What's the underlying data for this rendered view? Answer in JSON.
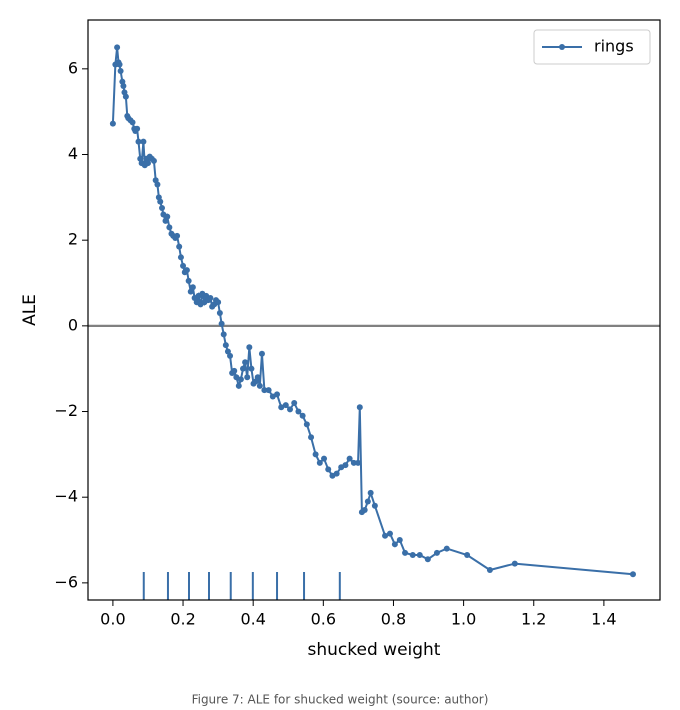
{
  "chart_data": {
    "type": "line",
    "xlabel": "shucked weight",
    "ylabel": "ALE",
    "x": [
      0,
      0.007,
      0.012,
      0.016,
      0.019,
      0.022,
      0.027,
      0.03,
      0.033,
      0.037,
      0.041,
      0.044,
      0.05,
      0.056,
      0.061,
      0.064,
      0.069,
      0.073,
      0.078,
      0.082,
      0.087,
      0.091,
      0.095,
      0.1,
      0.105,
      0.111,
      0.117,
      0.122,
      0.127,
      0.131,
      0.135,
      0.14,
      0.144,
      0.15,
      0.155,
      0.161,
      0.167,
      0.172,
      0.178,
      0.183,
      0.189,
      0.194,
      0.2,
      0.205,
      0.211,
      0.216,
      0.222,
      0.228,
      0.233,
      0.239,
      0.244,
      0.25,
      0.255,
      0.261,
      0.266,
      0.272,
      0.278,
      0.283,
      0.289,
      0.294,
      0.3,
      0.305,
      0.31,
      0.316,
      0.322,
      0.328,
      0.334,
      0.34,
      0.346,
      0.352,
      0.359,
      0.365,
      0.371,
      0.377,
      0.383,
      0.389,
      0.395,
      0.401,
      0.407,
      0.413,
      0.419,
      0.425,
      0.432,
      0.444,
      0.456,
      0.468,
      0.48,
      0.493,
      0.505,
      0.517,
      0.529,
      0.541,
      0.553,
      0.565,
      0.578,
      0.59,
      0.602,
      0.614,
      0.626,
      0.638,
      0.651,
      0.663,
      0.675,
      0.687,
      0.699,
      0.704,
      0.71,
      0.718,
      0.727,
      0.735,
      0.747,
      0.776,
      0.79,
      0.804,
      0.818,
      0.833,
      0.855,
      0.875,
      0.898,
      0.924,
      0.952,
      1.01,
      1.075,
      1.146,
      1.483
    ],
    "series": [
      {
        "name": "rings",
        "color": "#3a6fa8",
        "values": [
          4.72,
          6.1,
          6.5,
          6.15,
          6.1,
          5.95,
          5.7,
          5.6,
          5.45,
          5.35,
          4.9,
          4.85,
          4.8,
          4.75,
          4.6,
          4.55,
          4.6,
          4.3,
          3.9,
          3.8,
          4.3,
          3.75,
          3.9,
          3.8,
          3.95,
          3.9,
          3.85,
          3.4,
          3.3,
          3.0,
          2.9,
          2.75,
          2.6,
          2.45,
          2.55,
          2.3,
          2.15,
          2.1,
          2.05,
          2.1,
          1.85,
          1.6,
          1.4,
          1.25,
          1.3,
          1.05,
          0.8,
          0.9,
          0.65,
          0.55,
          0.7,
          0.5,
          0.75,
          0.55,
          0.7,
          0.6,
          0.65,
          0.45,
          0.5,
          0.6,
          0.55,
          0.3,
          0.05,
          -0.2,
          -0.45,
          -0.6,
          -0.7,
          -1.1,
          -1.05,
          -1.2,
          -1.4,
          -1.25,
          -1.0,
          -0.85,
          -1.2,
          -0.5,
          -1.0,
          -1.35,
          -1.3,
          -1.2,
          -1.4,
          -0.65,
          -1.5,
          -1.5,
          -1.65,
          -1.6,
          -1.9,
          -1.85,
          -1.95,
          -1.8,
          -2.0,
          -2.1,
          -2.3,
          -2.6,
          -3.0,
          -3.2,
          -3.1,
          -3.35,
          -3.5,
          -3.45,
          -3.3,
          -3.25,
          -3.1,
          -3.2,
          -3.2,
          -1.9,
          -4.35,
          -4.3,
          -4.1,
          -3.9,
          -4.2,
          -4.9,
          -4.85,
          -5.1,
          -5.0,
          -5.3,
          -5.35,
          -5.35,
          -5.45,
          -5.3,
          -5.2,
          -5.35,
          -5.7,
          -5.55,
          -5.8
        ]
      }
    ],
    "rug": [
      0.088,
      0.157,
      0.217,
      0.274,
      0.336,
      0.399,
      0.468,
      0.545,
      0.647
    ],
    "xlim": [
      -0.071,
      1.56
    ],
    "ylim": [
      -6.4,
      7.14
    ],
    "xticks": [
      {
        "value": 0,
        "label": "0.0"
      },
      0.2,
      0.4,
      0.6,
      0.8,
      {
        "value": 1,
        "label": "1.0"
      },
      1.2,
      1.4
    ],
    "yticks": [
      {
        "value": -6,
        "label": "−6"
      },
      {
        "value": -4,
        "label": "−4"
      },
      {
        "value": -2,
        "label": "−2"
      },
      0,
      2,
      4,
      6
    ],
    "legend": "upper right"
  },
  "caption": "Figure 7: ALE for shucked weight (source: author)"
}
